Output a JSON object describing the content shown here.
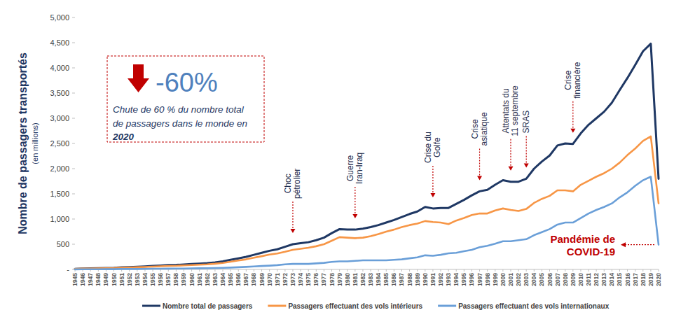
{
  "chart_data": {
    "type": "line",
    "y_label": "Nombre de passagers transportés",
    "y_label_unit": "(en millions)",
    "categories": [
      "1945",
      "1946",
      "1947",
      "1948",
      "1949",
      "1950",
      "1951",
      "1952",
      "1953",
      "1954",
      "1955",
      "1956",
      "1957",
      "1958",
      "1959",
      "1960",
      "1961",
      "1962",
      "1963",
      "1964",
      "1965",
      "1966",
      "1967",
      "1968",
      "1969",
      "1970",
      "1971",
      "1972",
      "1973",
      "1974",
      "1975",
      "1976",
      "1977",
      "1978",
      "1979",
      "1980",
      "1981",
      "1982",
      "1983",
      "1984",
      "1985",
      "1986",
      "1987",
      "1988",
      "1989",
      "1990",
      "1991",
      "1992",
      "1993",
      "1994",
      "1995",
      "1996",
      "1997",
      "1998",
      "1999",
      "2000",
      "2001",
      "2002",
      "2003",
      "2004",
      "2005",
      "2006",
      "2007",
      "2008",
      "2009",
      "2010",
      "2011",
      "2012",
      "2013",
      "2014",
      "2015",
      "2016",
      "2017",
      "2018",
      "2019",
      "2020"
    ],
    "series": [
      {
        "name": "Nombre total de passagers",
        "color": "#1f3864",
        "values": [
          10,
          18,
          21,
          24,
          27,
          31,
          42,
          46,
          52,
          60,
          68,
          76,
          86,
          90,
          98,
          106,
          115,
          125,
          140,
          160,
          190,
          220,
          250,
          290,
          330,
          370,
          400,
          450,
          500,
          520,
          540,
          580,
          630,
          720,
          800,
          790,
          790,
          810,
          840,
          880,
          930,
          980,
          1040,
          1100,
          1150,
          1240,
          1210,
          1220,
          1220,
          1300,
          1380,
          1470,
          1550,
          1580,
          1680,
          1770,
          1740,
          1740,
          1800,
          2000,
          2140,
          2260,
          2460,
          2500,
          2490,
          2700,
          2870,
          3000,
          3130,
          3310,
          3560,
          3800,
          4060,
          4330,
          4480,
          1800
        ]
      },
      {
        "name": "Passagers effectuant des vols intérieurs",
        "color": "#f79646",
        "values": [
          8,
          15,
          18,
          20,
          22,
          26,
          34,
          38,
          43,
          49,
          55,
          62,
          70,
          73,
          80,
          86,
          93,
          101,
          113,
          129,
          153,
          177,
          200,
          232,
          262,
          295,
          315,
          350,
          390,
          410,
          430,
          460,
          500,
          570,
          640,
          630,
          620,
          630,
          660,
          700,
          750,
          790,
          840,
          880,
          910,
          960,
          940,
          930,
          900,
          970,
          1020,
          1080,
          1110,
          1110,
          1170,
          1210,
          1180,
          1160,
          1200,
          1320,
          1400,
          1460,
          1570,
          1570,
          1550,
          1680,
          1760,
          1840,
          1910,
          2000,
          2120,
          2270,
          2400,
          2550,
          2640,
          1310
        ]
      },
      {
        "name": "Passagers effectuant des vols internationaux",
        "color": "#6a9fd8",
        "values": [
          2,
          3,
          3,
          4,
          5,
          5,
          8,
          8,
          9,
          11,
          13,
          14,
          16,
          17,
          18,
          20,
          22,
          24,
          27,
          31,
          37,
          43,
          50,
          58,
          68,
          75,
          85,
          100,
          110,
          110,
          110,
          120,
          130,
          150,
          160,
          160,
          170,
          180,
          180,
          180,
          180,
          190,
          200,
          220,
          240,
          280,
          270,
          290,
          320,
          330,
          360,
          390,
          440,
          470,
          510,
          560,
          560,
          580,
          600,
          680,
          740,
          800,
          890,
          930,
          930,
          1020,
          1110,
          1180,
          1240,
          1310,
          1430,
          1530,
          1660,
          1770,
          1840,
          490
        ]
      }
    ],
    "ylim": [
      0,
      5000
    ],
    "yticks": [
      {
        "value": 0,
        "label": "-"
      },
      500,
      {
        "value": 1000,
        "label": "1,000"
      },
      {
        "value": 1500,
        "label": "1,500"
      },
      {
        "value": 2000,
        "label": "2,000"
      },
      {
        "value": 2500,
        "label": "2,500"
      },
      {
        "value": 3000,
        "label": "3,000"
      },
      {
        "value": 3500,
        "label": "3,500"
      },
      {
        "value": 4000,
        "label": "4,000"
      },
      {
        "value": 4500,
        "label": "4,500"
      },
      {
        "value": 5000,
        "label": "5,000"
      }
    ],
    "grid": false,
    "legend": "bottom",
    "annotations": [
      {
        "lines": [
          "Choc",
          "pétrolier"
        ],
        "x": "1973"
      },
      {
        "lines": [
          "Guerre",
          "Iran-Iraq"
        ],
        "x": "1981"
      },
      {
        "lines": [
          "Crise du",
          "Golfe"
        ],
        "x": "1991"
      },
      {
        "lines": [
          "Crise",
          "asiatique"
        ],
        "x": "1997"
      },
      {
        "lines": [
          "Attentats du",
          "11 septembre"
        ],
        "x": "2001"
      },
      {
        "lines": [
          "SRAS"
        ],
        "x": "2003"
      },
      {
        "lines": [
          "Crise",
          "financière"
        ],
        "x": "2009"
      }
    ],
    "callout": {
      "lines": [
        "Pandémie de",
        "COVID-19"
      ],
      "x": "2020"
    },
    "highlight": {
      "value": -60,
      "label": "-60%",
      "text_lines": [
        "Chute de 60 % du nombre total",
        "de passagers dans le monde en",
        "2020"
      ]
    }
  }
}
